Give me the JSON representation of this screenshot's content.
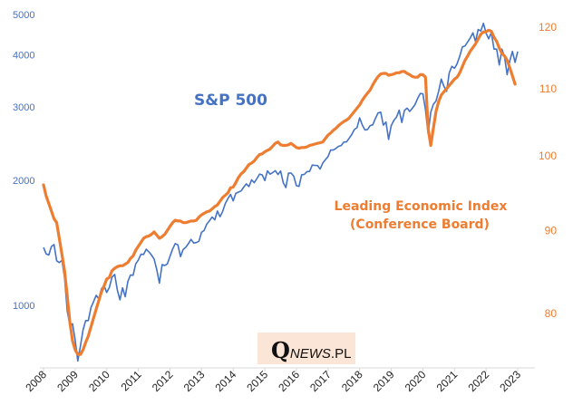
{
  "chart_data": {
    "type": "line",
    "title": "",
    "x_start": "2008-01",
    "x_frequency": "monthly",
    "x_tick_labels": [
      "2008",
      "2009",
      "2010",
      "2011",
      "2012",
      "2013",
      "2014",
      "2015",
      "2016",
      "2017",
      "2018",
      "2019",
      "2020",
      "2021",
      "2022",
      "2023"
    ],
    "left_axis": {
      "scale": "log",
      "ticks": [
        1000,
        2000,
        3000,
        4000,
        5000
      ],
      "tick_labels": [
        "1000",
        "2000",
        "3000",
        "4000",
        "5000"
      ],
      "range": [
        650,
        5300
      ]
    },
    "right_axis": {
      "scale": "log",
      "ticks": [
        80,
        90,
        100,
        110,
        120
      ],
      "tick_labels": [
        "80",
        "90",
        "100",
        "110",
        "120"
      ],
      "range": [
        72,
        122
      ]
    },
    "grid": false,
    "series": [
      {
        "name": "S&P 500",
        "axis": "left",
        "color": "#4472c4",
        "values": [
          1378,
          1330,
          1322,
          1385,
          1400,
          1280,
          1267,
          1283,
          1166,
          968,
          896,
          903,
          826,
          735,
          798,
          873,
          919,
          919,
          987,
          1021,
          1057,
          1036,
          1096,
          1115,
          1074,
          1104,
          1169,
          1187,
          1089,
          1031,
          1102,
          1049,
          1141,
          1183,
          1181,
          1258,
          1286,
          1327,
          1326,
          1364,
          1345,
          1321,
          1292,
          1219,
          1131,
          1253,
          1247,
          1258,
          1312,
          1366,
          1408,
          1398,
          1310,
          1362,
          1379,
          1407,
          1441,
          1412,
          1416,
          1426,
          1498,
          1515,
          1569,
          1598,
          1631,
          1606,
          1686,
          1633,
          1682,
          1757,
          1806,
          1848,
          1783,
          1859,
          1872,
          1884,
          1924,
          1960,
          1931,
          2003,
          1972,
          2018,
          2068,
          2059,
          1995,
          2105,
          2068,
          2086,
          2107,
          2063,
          2104,
          1972,
          1920,
          2079,
          2080,
          2044,
          1940,
          1932,
          2060,
          2065,
          2097,
          2099,
          2174,
          2171,
          2168,
          2126,
          2199,
          2239,
          2279,
          2364,
          2363,
          2384,
          2412,
          2423,
          2470,
          2472,
          2519,
          2575,
          2648,
          2674,
          2824,
          2714,
          2641,
          2648,
          2705,
          2718,
          2816,
          2902,
          2914,
          2712,
          2760,
          2507,
          2704,
          2784,
          2834,
          2946,
          2752,
          2942,
          2980,
          2926,
          2977,
          3038,
          3141,
          3231,
          3226,
          2954,
          2585,
          2912,
          3044,
          3100,
          3271,
          3500,
          3363,
          3270,
          3622,
          3756,
          3714,
          3811,
          3973,
          4181,
          4204,
          4298,
          4395,
          4523,
          4308,
          4605,
          4567,
          4766,
          4516,
          4374,
          4530,
          4132,
          4132,
          3785,
          4130,
          3955,
          3586,
          3872,
          4080,
          3840,
          4077
        ]
      },
      {
        "name": "Leading Economic Index (Conference Board)",
        "axis": "right",
        "color": "#ed7d31",
        "values": [
          96,
          94.5,
          93.5,
          92.5,
          91.5,
          91,
          89,
          87,
          85,
          82,
          79,
          77,
          76,
          75.5,
          75.5,
          76,
          76.8,
          77.5,
          78.5,
          79.5,
          80.5,
          81.5,
          82.5,
          83.2,
          84,
          84.2,
          85,
          85.3,
          85.5,
          85.6,
          85.6,
          85.8,
          86,
          86.5,
          86.8,
          87.5,
          88,
          88.5,
          89,
          89.2,
          89.3,
          89.5,
          89.8,
          89.4,
          89,
          89.2,
          89.5,
          90,
          90.5,
          91,
          91.3,
          91.2,
          91.2,
          91,
          91,
          91.1,
          91.2,
          91.2,
          91.3,
          91.7,
          92,
          92.2,
          92.4,
          92.5,
          92.8,
          93.1,
          93.3,
          93.8,
          94.3,
          94.6,
          94.9,
          95.6,
          95.7,
          96.3,
          97,
          97.5,
          97.8,
          98.3,
          98.8,
          99,
          99.3,
          99.8,
          100.2,
          100.3,
          100.6,
          100.8,
          101,
          101.4,
          101.8,
          102,
          101.6,
          101.5,
          101.5,
          101.6,
          101.8,
          101.5,
          101.2,
          101.1,
          101.2,
          101.2,
          101.3,
          101.5,
          101.6,
          101.7,
          101.8,
          101.9,
          102,
          102.5,
          103,
          103.3,
          103.7,
          104,
          104.4,
          104.7,
          105,
          105.2,
          105.5,
          106,
          106.5,
          107,
          107.5,
          108.2,
          108.8,
          109.3,
          109.8,
          110.6,
          111.3,
          111.9,
          112.3,
          112.4,
          112.4,
          112.1,
          112.2,
          112.3,
          112.5,
          112.5,
          112.7,
          112.7,
          112.4,
          112.2,
          111.9,
          111.8,
          111.8,
          112.2,
          112.2,
          111.8,
          104,
          101.5,
          104,
          106.5,
          108,
          109,
          109.5,
          110,
          110.5,
          111,
          111.5,
          111.8,
          112.5,
          113.5,
          114.5,
          115.2,
          116,
          116.6,
          117.2,
          118,
          118.8,
          119.2,
          119.2,
          119.5,
          119.3,
          118.3,
          117.6,
          116.5,
          115.6,
          115.2,
          114.5,
          113.3,
          112,
          110.7
        ]
      }
    ],
    "annotations": [
      "S&P 500",
      "Leading Economic Index",
      "(Conference Board)"
    ]
  },
  "watermark": {
    "text": "QNEWS.PL",
    "q": "Q",
    "rest": "NEWS.PL"
  }
}
